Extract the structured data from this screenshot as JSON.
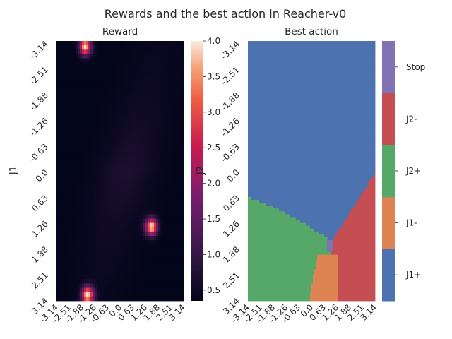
{
  "figure": {
    "title": "Rewards and the best action in Reacher-v0"
  },
  "chart_data": [
    {
      "type": "heatmap",
      "title": "Reward",
      "xlabel": "",
      "ylabel": "J1",
      "x_ticks": [
        "-3.14",
        "-2.51",
        "-1.88",
        "-1.26",
        "-0.63",
        "0.0",
        "0.63",
        "1.26",
        "1.88",
        "2.51",
        "3.14"
      ],
      "y_ticks": [
        "-3.14",
        "-2.51",
        "-1.88",
        "-1.26",
        "-0.63",
        "0.0",
        "0.63",
        "1.26",
        "1.88",
        "2.51",
        "3.14"
      ],
      "xlim": [
        -3.14,
        3.14
      ],
      "ylim": [
        -3.14,
        3.14
      ],
      "colorbar": {
        "label": "J2",
        "range": [
          0.35,
          4.0
        ],
        "ticks": [
          "0.5",
          "1.0",
          "1.5",
          "2.0",
          "2.5",
          "3.0",
          "3.5",
          "4.0"
        ]
      },
      "hotspots": [
        {
          "j1": -3.0,
          "j2": -1.72,
          "peak": 4.0
        },
        {
          "j1": 3.0,
          "j2": -1.6,
          "peak": 4.0
        },
        {
          "j1": 1.35,
          "j2": 1.55,
          "peak": 4.0
        }
      ],
      "colormap": "rocket"
    },
    {
      "type": "heatmap",
      "title": "Best action",
      "x_ticks": [
        "-3.14",
        "-2.51",
        "-1.88",
        "-1.26",
        "-0.63",
        "0.0",
        "0.63",
        "1.26",
        "1.88",
        "2.51",
        "3.14"
      ],
      "y_ticks": [
        "-3.14",
        "-2.51",
        "-1.88",
        "-1.26",
        "-0.63",
        "0.0",
        "0.63",
        "1.26",
        "1.88",
        "2.51",
        "3.14"
      ],
      "categories": [
        "J1+",
        "J1-",
        "J2+",
        "J2-",
        "Stop"
      ],
      "colors": [
        "#4c72b0",
        "#dd8452",
        "#55a868",
        "#c44e52",
        "#8172b3"
      ],
      "regions": {
        "J1+": "upper region (j1 below about 0.6 to 1.4)",
        "J2+": "lower left",
        "J1-": "bottom center, j2 from about 0.4 to 1.4",
        "J2-": "lower right",
        "Stop": "small patch near j1 1.7, j2 0.9"
      }
    }
  ]
}
